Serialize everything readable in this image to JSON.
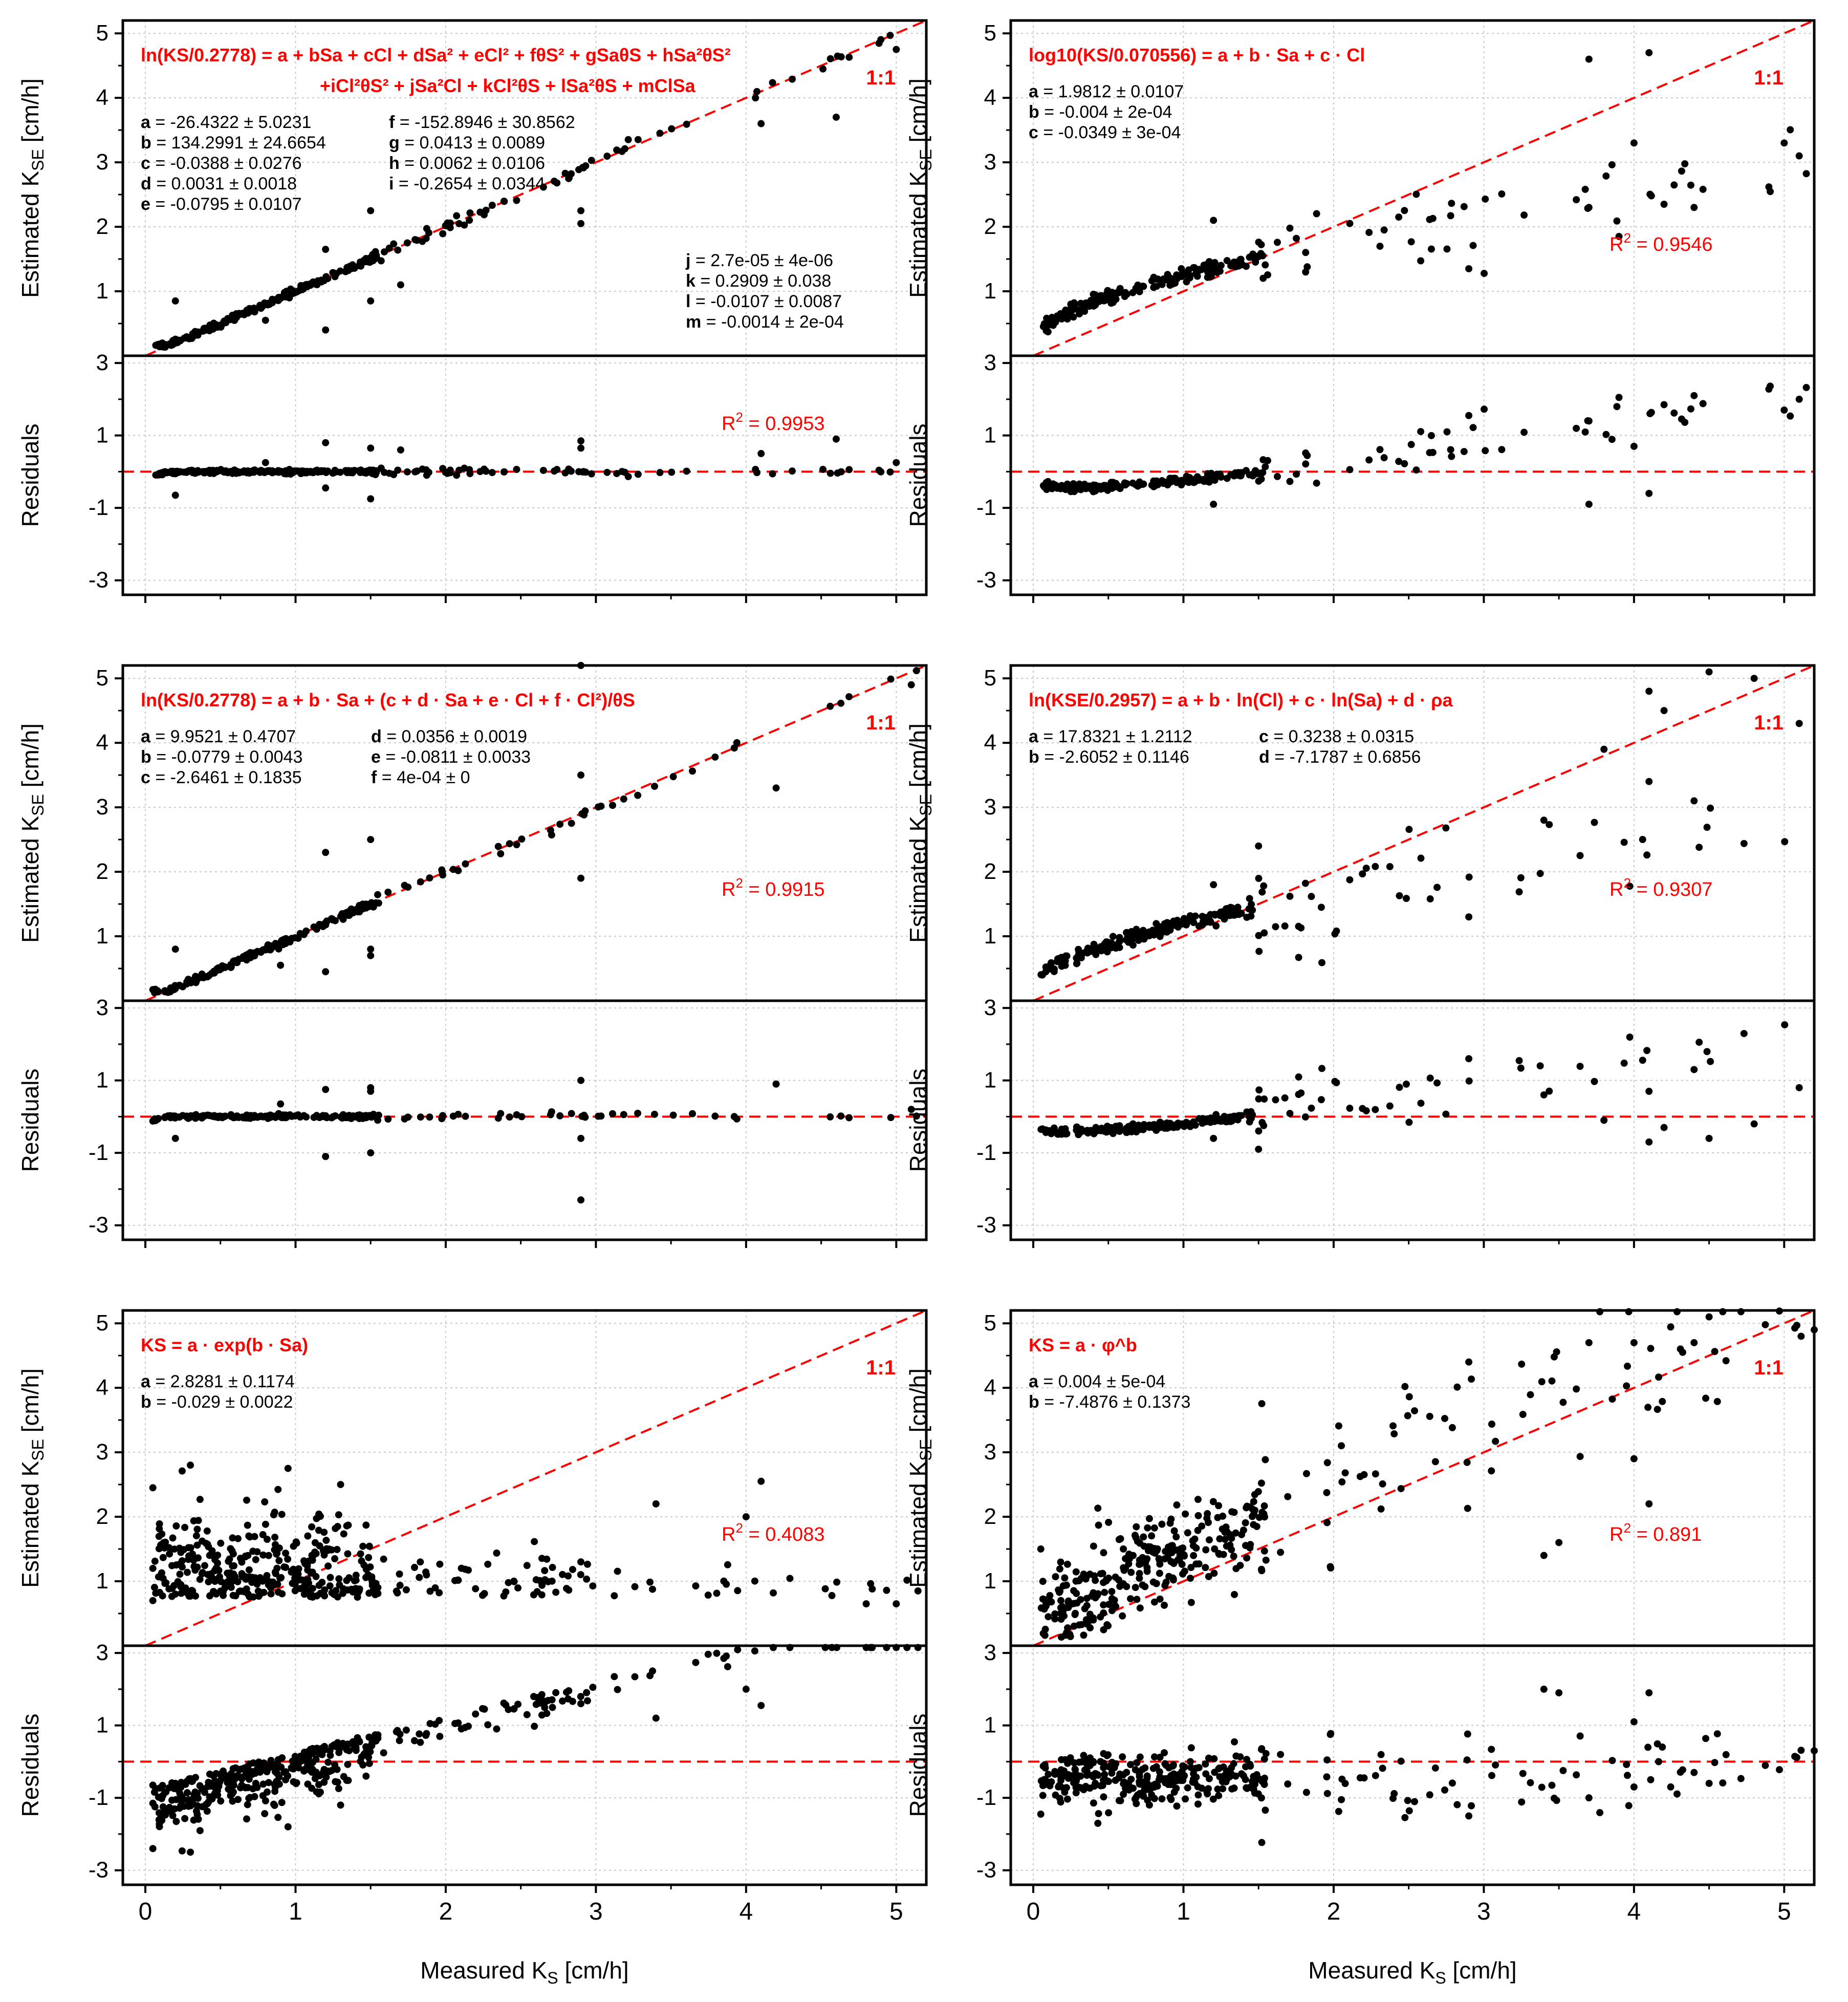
{
  "figure": {
    "x_title_prefix": "Measured K",
    "x_title_sub": "S",
    "x_title_suffix": " [cm/h]",
    "y_top_title_prefix": "Estimated K",
    "y_top_title_sub": "SE",
    "y_top_title_suffix": " [cm/h]",
    "y_bottom_title": "Residuals",
    "colors": {
      "points": "#000000",
      "reference": "#ff0000",
      "text_red": "#ff0000",
      "grid": "#c8c8c8"
    }
  },
  "chart_data": [
    {
      "type": "scatter",
      "panel": "row1-left",
      "xlim": [
        -0.15,
        5.2
      ],
      "x_ticks": [
        0,
        1,
        2,
        3,
        4,
        5
      ],
      "ylim_top": [
        0,
        5.2
      ],
      "y_ticks_top": [
        1,
        2,
        3,
        4,
        5
      ],
      "ylim_bottom": [
        -3.4,
        3.2
      ],
      "y_ticks_bottom": [
        -3,
        -1,
        1,
        3
      ],
      "ref_line_label": "1:1",
      "r2_label": "R",
      "r2_sup": "2",
      "r2_value": " = 0.9953",
      "r2_placement": "residual-panel",
      "equation": "ln(K_S / 0.2778) = a + bSa + cCl + dSa² + eCl² + fθs² + gSaθs + hSa²θs² + iCl²θs² + jSa²Cl + kCl²θs + lSa²θs + mClSa",
      "equation_lines": [
        "ln(KS/0.2778) = a + bSa + cCl + dSa² + eCl² + fθS² + gSaθS + hSa²θS²",
        "+iCl²θS² + jSa²Cl + kCl²θS + lSa²θS + mClSa"
      ],
      "coefficients": [
        {
          "name": "a",
          "text": " = -26.4322 ± 5.0231"
        },
        {
          "name": "b",
          "text": " = 134.2991 ± 24.6654"
        },
        {
          "name": "c",
          "text": " = -0.0388 ± 0.0276"
        },
        {
          "name": "d",
          "text": " = 0.0031 ± 0.0018"
        },
        {
          "name": "e",
          "text": " = -0.0795 ± 0.0107"
        },
        {
          "name": "f",
          "text": " = -152.8946 ± 30.8562"
        },
        {
          "name": "g",
          "text": " = 0.0413 ± 0.0089"
        },
        {
          "name": "h",
          "text": " = 0.0062 ± 0.0106"
        },
        {
          "name": "i",
          "text": " = -0.2654 ± 0.0344"
        },
        {
          "name": "j",
          "text": " = 2.7e-05 ± 4e-06"
        },
        {
          "name": "k",
          "text": " = 0.2909 ± 0.038"
        },
        {
          "name": "l",
          "text": " = -0.0107 ± 0.0087"
        },
        {
          "name": "m",
          "text": " = -0.0014 ± 2e-04"
        }
      ],
      "fit_model": "linear",
      "fit_params": [
        0.0,
        1.0
      ],
      "fit_noise": 0.05,
      "outliers": [
        [
          0.8,
          0.55
        ],
        [
          0.2,
          0.85
        ],
        [
          1.2,
          0.4
        ],
        [
          1.5,
          2.25
        ],
        [
          1.5,
          0.85
        ],
        [
          1.7,
          1.1
        ],
        [
          2.9,
          2.05
        ],
        [
          2.9,
          2.25
        ],
        [
          4.1,
          3.6
        ],
        [
          4.6,
          3.7
        ],
        [
          5.0,
          4.75
        ],
        [
          1.2,
          1.65
        ]
      ],
      "n_points": 260
    },
    {
      "type": "scatter",
      "panel": "row1-right",
      "xlim": [
        -0.15,
        5.2
      ],
      "x_ticks": [
        0,
        1,
        2,
        3,
        4,
        5
      ],
      "ylim_top": [
        0,
        5.2
      ],
      "y_ticks_top": [
        1,
        2,
        3,
        4,
        5
      ],
      "ylim_bottom": [
        -3.4,
        3.2
      ],
      "y_ticks_bottom": [
        -3,
        -1,
        1,
        3
      ],
      "ref_line_label": "1:1",
      "r2_label": "R",
      "r2_sup": "2",
      "r2_value": " = 0.9546",
      "r2_placement": "scatter-panel",
      "equation": "log10(K_S / 0.070556) = a + b·Sa + c·Cl",
      "equation_lines": [
        "log10(KS/0.070556) = a + b · Sa + c · Cl"
      ],
      "coefficients": [
        {
          "name": "a",
          "text": " = 1.9812 ± 0.0107"
        },
        {
          "name": "b",
          "text": " = -0.004 ± 2e-04"
        },
        {
          "name": "c",
          "text": " = -0.0349 ± 3e-04"
        }
      ],
      "fit_model": "sqrtlike",
      "fit_params": [
        0.2,
        1.05,
        0.55
      ],
      "fit_noise": 0.35,
      "outliers": [
        [
          3.7,
          4.6
        ],
        [
          4.1,
          4.7
        ],
        [
          1.2,
          2.1
        ],
        [
          3.7,
          2.3
        ],
        [
          3.9,
          1.85
        ],
        [
          4.0,
          3.3
        ],
        [
          4.2,
          2.35
        ],
        [
          4.4,
          2.3
        ],
        [
          5.0,
          3.3
        ],
        [
          5.1,
          3.1
        ],
        [
          0.25,
          0.8
        ],
        [
          2.9,
          1.35
        ]
      ],
      "n_points": 230
    },
    {
      "type": "scatter",
      "panel": "row2-left",
      "xlim": [
        -0.15,
        5.2
      ],
      "x_ticks": [
        0,
        1,
        2,
        3,
        4,
        5
      ],
      "ylim_top": [
        0,
        5.2
      ],
      "y_ticks_top": [
        1,
        2,
        3,
        4,
        5
      ],
      "ylim_bottom": [
        -3.4,
        3.2
      ],
      "y_ticks_bottom": [
        -3,
        -1,
        1,
        3
      ],
      "ref_line_label": "1:1",
      "r2_label": "R",
      "r2_sup": "2",
      "r2_value": " = 0.9915",
      "r2_placement": "scatter-panel",
      "equation": "ln(K_S / 0.2778) = a + b·Sa + (c + d·Sa + e·Cl + f·Cl²)/θs",
      "equation_lines": [
        "ln(KS/0.2778) = a + b · Sa + (c + d · Sa + e · Cl + f · Cl²)/θS"
      ],
      "coefficients": [
        {
          "name": "a",
          "text": " = 9.9521 ± 0.4707"
        },
        {
          "name": "b",
          "text": " = -0.0779 ± 0.0043"
        },
        {
          "name": "c",
          "text": " = -2.6461 ± 0.1835"
        },
        {
          "name": "d",
          "text": " = 0.0356 ± 0.0019"
        },
        {
          "name": "e",
          "text": " = -0.0811 ± 0.0033"
        },
        {
          "name": "f",
          "text": " = 4e-04 ± 0"
        }
      ],
      "fit_model": "linear",
      "fit_params": [
        0.0,
        1.0
      ],
      "fit_noise": 0.05,
      "outliers": [
        [
          1.2,
          2.3
        ],
        [
          1.5,
          2.5
        ],
        [
          1.5,
          0.7
        ],
        [
          1.5,
          0.8
        ],
        [
          2.9,
          3.5
        ],
        [
          2.9,
          1.9
        ],
        [
          2.9,
          5.2
        ],
        [
          4.2,
          3.3
        ],
        [
          5.1,
          4.9
        ],
        [
          1.2,
          0.45
        ],
        [
          0.9,
          0.55
        ],
        [
          0.2,
          0.8
        ]
      ],
      "n_points": 240
    },
    {
      "type": "scatter",
      "panel": "row2-right",
      "xlim": [
        -0.15,
        5.2
      ],
      "x_ticks": [
        0,
        1,
        2,
        3,
        4,
        5
      ],
      "ylim_top": [
        0,
        5.2
      ],
      "y_ticks_top": [
        1,
        2,
        3,
        4,
        5
      ],
      "ylim_bottom": [
        -3.4,
        3.2
      ],
      "y_ticks_bottom": [
        -3,
        -1,
        1,
        3
      ],
      "ref_line_label": "1:1",
      "r2_label": "R",
      "r2_sup": "2",
      "r2_value": " = 0.9307",
      "r2_placement": "scatter-panel",
      "equation": "ln(K_SE / 0.2957) = a + b·ln(Cl) + c·ln(Sa) + d·ρa",
      "equation_lines": [
        "ln(KSE/0.2957) = a + b · ln(Cl) + c · ln(Sa) + d · ρa"
      ],
      "coefficients": [
        {
          "name": "a",
          "text": " = 17.8321 ± 1.2112"
        },
        {
          "name": "b",
          "text": " = -2.6052 ± 0.1146"
        },
        {
          "name": "c",
          "text": " = 0.3238 ± 0.0315"
        },
        {
          "name": "d",
          "text": " = -7.1787 ± 0.6856"
        }
      ],
      "fit_model": "sqrtlike",
      "fit_params": [
        0.25,
        0.95,
        0.6
      ],
      "fit_noise": 0.4,
      "outliers": [
        [
          4.1,
          4.8
        ],
        [
          4.5,
          5.1
        ],
        [
          4.8,
          5.0
        ],
        [
          5.1,
          4.3
        ],
        [
          4.2,
          4.5
        ],
        [
          3.8,
          3.9
        ],
        [
          4.1,
          3.4
        ],
        [
          4.4,
          3.1
        ],
        [
          1.5,
          2.4
        ],
        [
          3.4,
          2.8
        ],
        [
          2.9,
          1.3
        ],
        [
          1.2,
          1.8
        ]
      ],
      "n_points": 230
    },
    {
      "type": "scatter",
      "panel": "row3-left",
      "xlim": [
        -0.15,
        5.2
      ],
      "x_ticks": [
        0,
        1,
        2,
        3,
        4,
        5
      ],
      "ylim_top": [
        0,
        5.2
      ],
      "y_ticks_top": [
        1,
        2,
        3,
        4,
        5
      ],
      "ylim_bottom": [
        -3.4,
        3.2
      ],
      "y_ticks_bottom": [
        -3,
        -1,
        1,
        3
      ],
      "ref_line_label": "1:1",
      "r2_label": "R",
      "r2_sup": "2",
      "r2_value": " = 0.4083",
      "r2_placement": "scatter-panel",
      "equation": "K_S = a·exp(b·Sa)",
      "equation_lines": [
        "KS = a · exp(b · Sa)"
      ],
      "coefficients": [
        {
          "name": "a",
          "text": " = 2.8281 ± 0.1174"
        },
        {
          "name": "b",
          "text": " = -0.029 ± 0.0022"
        }
      ],
      "fit_model": "scatter_const",
      "fit_params": [
        1.1,
        0.6
      ],
      "fit_noise": 0.5,
      "outliers": [
        [
          0.3,
          2.8
        ],
        [
          0.95,
          2.75
        ],
        [
          1.3,
          2.5
        ],
        [
          3.4,
          2.2
        ],
        [
          4.1,
          2.55
        ],
        [
          4.0,
          2.0
        ],
        [
          4.8,
          0.65
        ],
        [
          5.0,
          0.65
        ],
        [
          0.05,
          2.45
        ],
        [
          2.9,
          1.3
        ],
        [
          0.05,
          1.2
        ],
        [
          0.05,
          0.7
        ]
      ],
      "n_points": 420
    },
    {
      "type": "scatter",
      "panel": "row3-right",
      "xlim": [
        -0.15,
        5.2
      ],
      "x_ticks": [
        0,
        1,
        2,
        3,
        4,
        5
      ],
      "ylim_top": [
        0,
        5.2
      ],
      "y_ticks_top": [
        1,
        2,
        3,
        4,
        5
      ],
      "ylim_bottom": [
        -3.4,
        3.2
      ],
      "y_ticks_bottom": [
        -3,
        -1,
        1,
        3
      ],
      "ref_line_label": "1:1",
      "r2_label": "R",
      "r2_sup": "2",
      "r2_value": " = 0.891",
      "r2_placement": "scatter-panel",
      "equation": "K_S = a·φ^b",
      "equation_lines": [
        "KS = a · φ^b"
      ],
      "coefficients": [
        {
          "name": "a",
          "text": " = 0.004 ± 5e-04"
        },
        {
          "name": "b",
          "text": " = -7.4876 ± 0.1373"
        }
      ],
      "fit_model": "linear_spread",
      "fit_params": [
        0.5,
        0.95
      ],
      "fit_noise": 0.6,
      "outliers": [
        [
          2.9,
          4.4
        ],
        [
          3.7,
          4.7
        ],
        [
          4.0,
          4.7
        ],
        [
          4.5,
          5.1
        ],
        [
          4.4,
          4.7
        ],
        [
          4.0,
          2.9
        ],
        [
          4.1,
          2.2
        ],
        [
          3.4,
          1.4
        ],
        [
          3.5,
          1.6
        ],
        [
          5.2,
          4.9
        ],
        [
          0.05,
          1.5
        ],
        [
          0.1,
          0.45
        ]
      ],
      "n_points": 360
    }
  ]
}
